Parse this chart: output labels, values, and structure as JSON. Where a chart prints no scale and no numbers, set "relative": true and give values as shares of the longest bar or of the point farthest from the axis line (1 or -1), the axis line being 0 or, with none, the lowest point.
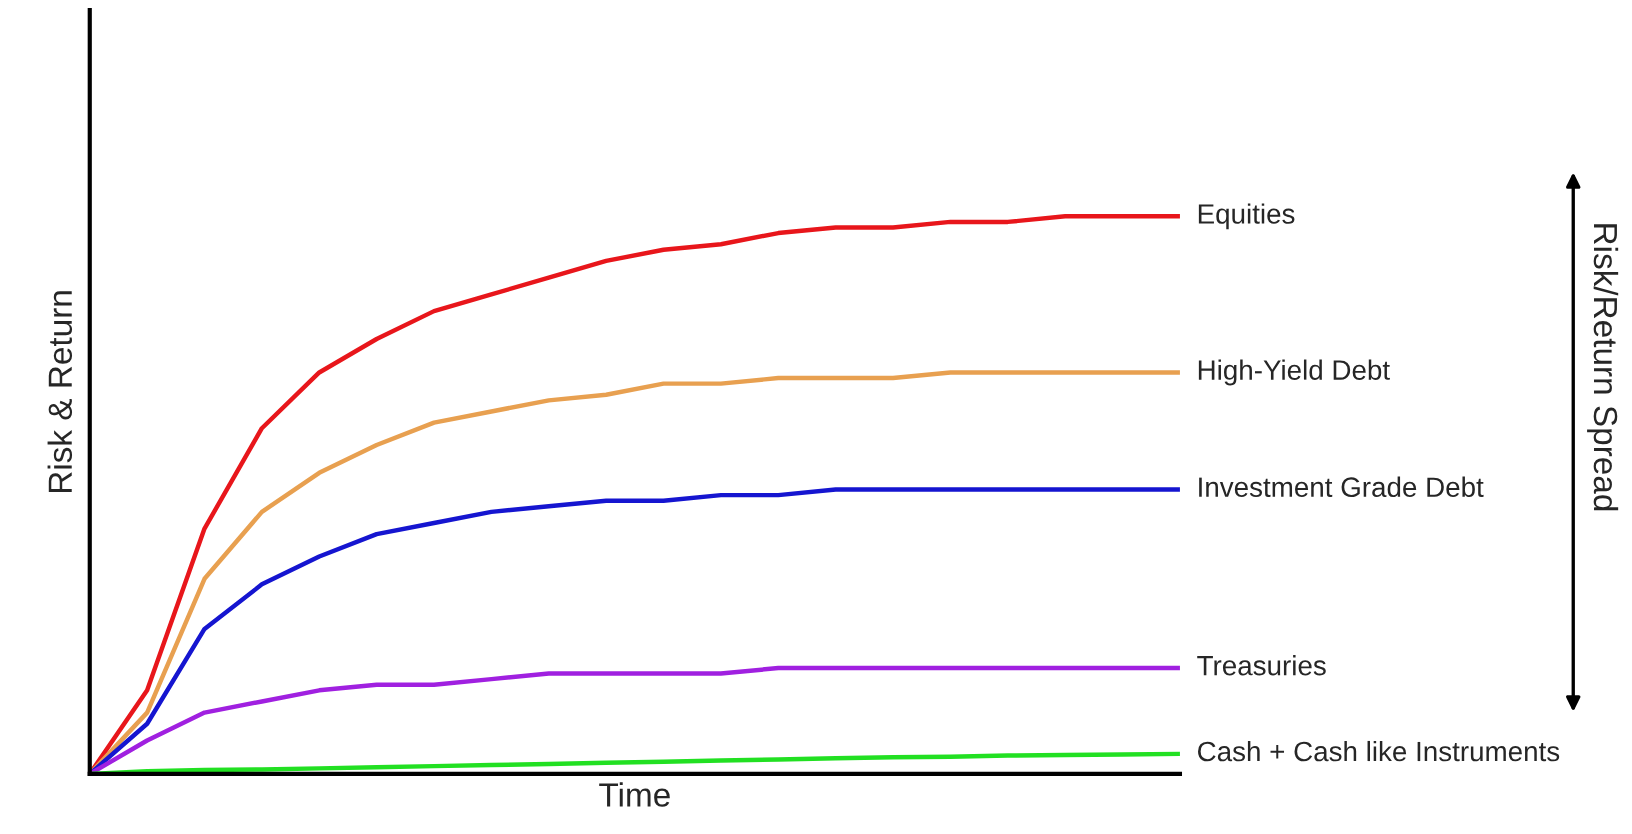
{
  "chart_data": {
    "type": "line",
    "relative": true,
    "xlabel": "Time",
    "ylabel": "Risk & Return",
    "legend": false,
    "marker": "none",
    "line_style": "solid",
    "categories": [
      null,
      null,
      null,
      null,
      null,
      null,
      null,
      null,
      null,
      null,
      null,
      null,
      null,
      null,
      null,
      null,
      null,
      null,
      null,
      null
    ],
    "series": [
      {
        "name": "Equities",
        "color": "#e8161b",
        "values": [
          0,
          0.15,
          0.44,
          0.62,
          0.72,
          0.78,
          0.83,
          0.86,
          0.89,
          0.92,
          0.94,
          0.95,
          0.97,
          0.98,
          0.98,
          0.99,
          0.99,
          1.0,
          1.0,
          1.0
        ]
      },
      {
        "name": "High-Yield Debt",
        "color": "#e8a050",
        "values": [
          0,
          0.11,
          0.35,
          0.47,
          0.54,
          0.59,
          0.63,
          0.65,
          0.67,
          0.68,
          0.7,
          0.7,
          0.71,
          0.71,
          0.71,
          0.72,
          0.72,
          0.72,
          0.72,
          0.72
        ]
      },
      {
        "name": "Investment Grade Debt",
        "color": "#1515d0",
        "values": [
          0,
          0.09,
          0.26,
          0.34,
          0.39,
          0.43,
          0.45,
          0.47,
          0.48,
          0.49,
          0.49,
          0.5,
          0.5,
          0.51,
          0.51,
          0.51,
          0.51,
          0.51,
          0.51,
          0.51
        ]
      },
      {
        "name": "Treasuries",
        "color": "#a020e0",
        "values": [
          0,
          0.06,
          0.11,
          0.13,
          0.15,
          0.16,
          0.16,
          0.17,
          0.18,
          0.18,
          0.18,
          0.18,
          0.19,
          0.19,
          0.19,
          0.19,
          0.19,
          0.19,
          0.19,
          0.19
        ]
      },
      {
        "name": "Cash + Cash like Instruments",
        "color": "#22e022",
        "values": [
          0,
          0.005,
          0.007,
          0.008,
          0.01,
          0.012,
          0.014,
          0.016,
          0.018,
          0.02,
          0.022,
          0.024,
          0.026,
          0.028,
          0.03,
          0.031,
          0.033,
          0.034,
          0.035,
          0.036
        ]
      }
    ],
    "annotations": [
      "Risk/Return Spread"
    ]
  }
}
